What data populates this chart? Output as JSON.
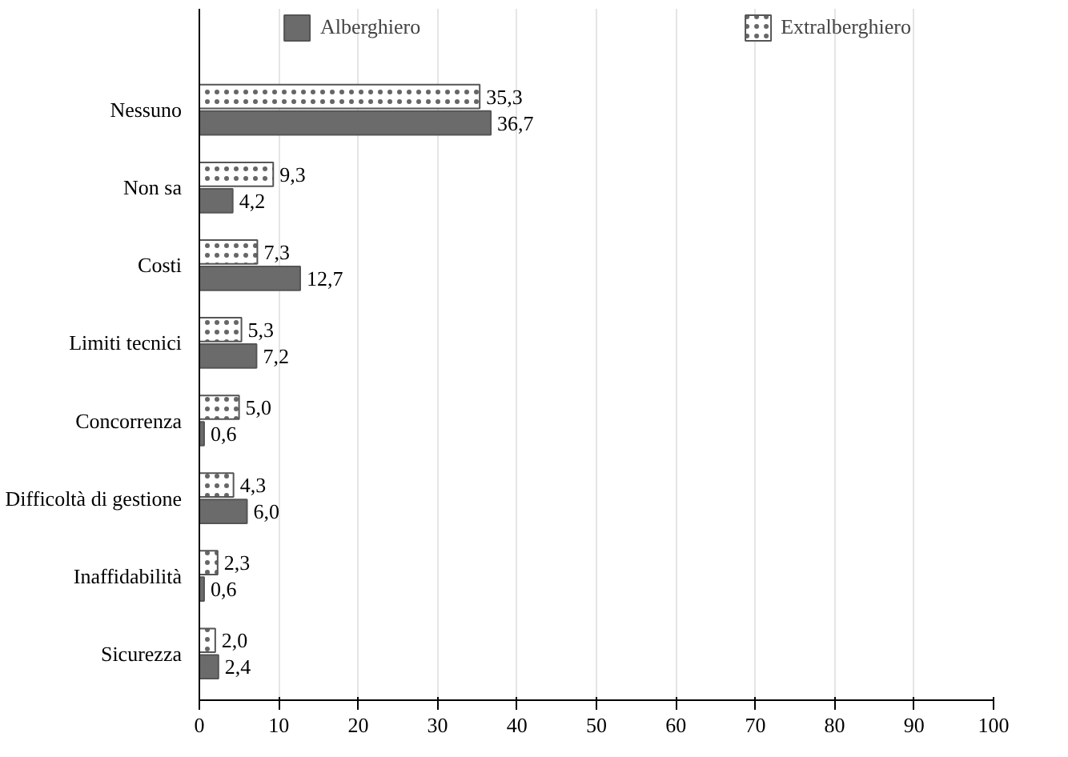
{
  "chart_data": {
    "type": "bar",
    "orientation": "horizontal",
    "categories": [
      "Nessuno",
      "Non sa",
      "Costi",
      "Limiti tecnici",
      "Concorrenza",
      "Difficoltà di gestione",
      "Inaffidabilità",
      "Sicurezza"
    ],
    "series": [
      {
        "name": "Alberghiero",
        "color": "#6b6b6b",
        "values": [
          36.7,
          4.2,
          12.7,
          7.2,
          0.6,
          6.0,
          0.6,
          2.4
        ],
        "value_labels": [
          "36,7",
          "4,2",
          "12,7",
          "7,2",
          "0,6",
          "6,0",
          "0,6",
          "2,4"
        ]
      },
      {
        "name": "Extralberghiero",
        "color": "#ffffff",
        "values": [
          35.3,
          9.3,
          7.3,
          5.3,
          5.0,
          4.3,
          2.3,
          2.0
        ],
        "value_labels": [
          "35,3",
          "9,3",
          "7,3",
          "5,3",
          "5,0",
          "4,3",
          "2,3",
          "2,0"
        ]
      }
    ],
    "xlim": [
      0,
      100
    ],
    "xticks": [
      0,
      10,
      20,
      30,
      40,
      50,
      60,
      70,
      80,
      90,
      100
    ],
    "grid": "x",
    "legend": "top"
  }
}
